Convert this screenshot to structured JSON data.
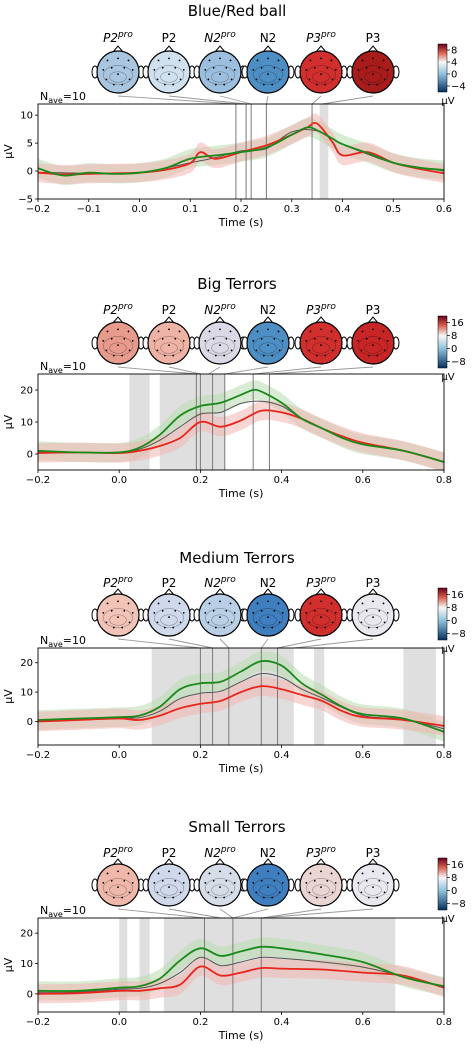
{
  "figure": {
    "colorbar_unit": "μV",
    "n_ave_label": "N",
    "n_ave_sub": "ave",
    "n_ave_value": "=10",
    "topo_labels": [
      {
        "base": "P2",
        "sup": "pro",
        "italic": true
      },
      {
        "base": "P2",
        "sup": "",
        "italic": false
      },
      {
        "base": "N2",
        "sup": "pro",
        "italic": true
      },
      {
        "base": "N2",
        "sup": "",
        "italic": false
      },
      {
        "base": "P3",
        "sup": "pro",
        "italic": true
      },
      {
        "base": "P3",
        "sup": "",
        "italic": false
      }
    ],
    "colors": {
      "green": "#1a8a1a",
      "red": "#e8251c",
      "dark": "#555555",
      "green_band": "#b8dcb0",
      "red_band": "#f2b5b0",
      "shade": "#d9d9d9"
    }
  },
  "chart_data": [
    {
      "type": "line",
      "title": "Blue/Red ball",
      "xlabel": "Time (s)",
      "ylabel": "μV",
      "xlim": [
        -0.2,
        0.6
      ],
      "ylim": [
        -5,
        12
      ],
      "xticks": [
        -0.2,
        -0.1,
        0.0,
        0.1,
        0.2,
        0.3,
        0.4,
        0.5,
        0.6
      ],
      "xtick_labels": [
        "−0.2",
        "−0.1",
        "0.0",
        "0.1",
        "0.2",
        "0.3",
        "0.4",
        "0.5",
        "0.6"
      ],
      "yticks": [
        -5,
        0,
        5,
        10
      ],
      "ytick_labels": [
        "−5",
        "0",
        "5",
        "10"
      ],
      "colorbar": {
        "ticks": [
          8,
          4,
          0,
          -4
        ],
        "tick_labels": [
          "8",
          "4",
          "0",
          "−4"
        ],
        "range": [
          -6,
          10
        ]
      },
      "topo_colors": [
        "#a8c6e0",
        "#cfe0ee",
        "#9dbfdf",
        "#4d8fc4",
        "#d12e2e",
        "#a81c1c"
      ],
      "topo_times": [
        0.19,
        0.21,
        0.22,
        0.25,
        0.34,
        0.36
      ],
      "vlines": [
        0.19,
        0.21,
        0.22,
        0.25,
        0.34
      ],
      "shaded": [
        [
          0.355,
          0.372
        ]
      ],
      "series": [
        {
          "color": "#1a8a1a",
          "x": [
            -0.2,
            -0.15,
            -0.1,
            -0.05,
            0.0,
            0.05,
            0.1,
            0.15,
            0.2,
            0.25,
            0.3,
            0.33,
            0.35,
            0.38,
            0.4,
            0.45,
            0.5,
            0.55,
            0.6
          ],
          "y": [
            0.5,
            -0.8,
            -0.3,
            -0.5,
            -0.3,
            0.5,
            2.2,
            2.8,
            3.4,
            4.2,
            6.5,
            7.8,
            7.3,
            5.8,
            4.8,
            3.2,
            1.5,
            0.6,
            0.2
          ]
        },
        {
          "color": "#e8251c",
          "x": [
            -0.2,
            -0.15,
            -0.1,
            -0.05,
            0.0,
            0.05,
            0.1,
            0.12,
            0.15,
            0.2,
            0.25,
            0.3,
            0.33,
            0.35,
            0.38,
            0.4,
            0.45,
            0.5,
            0.55,
            0.6
          ],
          "y": [
            -0.3,
            -0.6,
            -0.5,
            -0.4,
            -0.3,
            0.2,
            1.4,
            3.4,
            2.2,
            3.4,
            4.6,
            6.5,
            7.8,
            8.5,
            5.2,
            2.8,
            3.4,
            1.5,
            0.4,
            -0.4
          ]
        },
        {
          "color": "#555555",
          "x": [
            -0.2,
            -0.1,
            0.0,
            0.1,
            0.15,
            0.2,
            0.25,
            0.3,
            0.35,
            0.4,
            0.45,
            0.5,
            0.6
          ],
          "y": [
            -0.2,
            -0.4,
            -0.3,
            1.5,
            2.4,
            3.6,
            4.0,
            7.0,
            7.2,
            4.8,
            3.0,
            1.5,
            0.0
          ]
        }
      ]
    },
    {
      "type": "line",
      "title": "Big Terrors",
      "xlabel": "Time (s)",
      "ylabel": "μV",
      "xlim": [
        -0.2,
        0.8
      ],
      "ylim": [
        -5,
        25
      ],
      "xticks": [
        -0.2,
        0.0,
        0.2,
        0.4,
        0.6,
        0.8
      ],
      "xtick_labels": [
        "−0.2",
        "0.0",
        "0.2",
        "0.4",
        "0.6",
        "0.8"
      ],
      "yticks": [
        0,
        10,
        20
      ],
      "ytick_labels": [
        "0",
        "10",
        "20"
      ],
      "colorbar": {
        "ticks": [
          16,
          8,
          0,
          -8
        ],
        "tick_labels": [
          "16",
          "8",
          "0",
          "−8"
        ],
        "range": [
          -12,
          20
        ]
      },
      "topo_colors": [
        "#e89a8c",
        "#efb3a6",
        "#dcd9e6",
        "#4d8fc4",
        "#d12e2e",
        "#c82626"
      ],
      "topo_times": [
        0.19,
        0.2,
        0.22,
        0.26,
        0.33,
        0.37
      ],
      "vlines": [
        0.19,
        0.2,
        0.23,
        0.26,
        0.33,
        0.37
      ],
      "shaded": [
        [
          0.025,
          0.075
        ],
        [
          0.1,
          0.26
        ]
      ],
      "series": [
        {
          "color": "#1a8a1a",
          "x": [
            -0.2,
            -0.1,
            0.0,
            0.05,
            0.1,
            0.15,
            0.2,
            0.25,
            0.3,
            0.33,
            0.35,
            0.4,
            0.45,
            0.5,
            0.55,
            0.6,
            0.7,
            0.8
          ],
          "y": [
            1.0,
            0.5,
            0.5,
            2.0,
            6.0,
            12.0,
            15.0,
            16.0,
            18.5,
            20.0,
            19.5,
            16.0,
            11.0,
            8.0,
            5.0,
            3.0,
            1.0,
            -2.5
          ]
        },
        {
          "color": "#e8251c",
          "x": [
            -0.2,
            -0.1,
            0.0,
            0.05,
            0.1,
            0.15,
            0.2,
            0.25,
            0.3,
            0.35,
            0.4,
            0.45,
            0.5,
            0.55,
            0.6,
            0.7,
            0.8
          ],
          "y": [
            0.3,
            0.5,
            0.3,
            1.0,
            2.5,
            5.0,
            10.0,
            8.5,
            10.5,
            13.5,
            13.0,
            11.0,
            8.0,
            5.5,
            3.5,
            1.0,
            -2.5
          ]
        },
        {
          "color": "#555555",
          "x": [
            -0.2,
            -0.1,
            0.0,
            0.05,
            0.1,
            0.15,
            0.2,
            0.25,
            0.3,
            0.35,
            0.4,
            0.45,
            0.5,
            0.6,
            0.7,
            0.8
          ],
          "y": [
            0.6,
            0.5,
            0.4,
            1.5,
            4.3,
            8.5,
            12.5,
            13.0,
            15.8,
            16.5,
            15.0,
            11.0,
            8.0,
            3.3,
            1.0,
            -2.5
          ]
        }
      ]
    },
    {
      "type": "line",
      "title": "Medium Terrors",
      "xlabel": "Time (s)",
      "ylabel": "μV",
      "xlim": [
        -0.2,
        0.8
      ],
      "ylim": [
        -8,
        25
      ],
      "xticks": [
        -0.2,
        0.0,
        0.2,
        0.4,
        0.6,
        0.8
      ],
      "xtick_labels": [
        "−0.2",
        "0.0",
        "0.2",
        "0.4",
        "0.6",
        "0.8"
      ],
      "yticks": [
        0,
        10,
        20
      ],
      "ytick_labels": [
        "0",
        "10",
        "20"
      ],
      "colorbar": {
        "ticks": [
          16,
          8,
          0,
          -8
        ],
        "tick_labels": [
          "16",
          "8",
          "0",
          "−8"
        ],
        "range": [
          -12,
          20
        ]
      },
      "topo_colors": [
        "#f2c3b7",
        "#cfd9eb",
        "#b8cfe6",
        "#3f7fc0",
        "#d12e2e",
        "#e8e8ee"
      ],
      "topo_times": [
        0.2,
        0.23,
        0.27,
        0.35,
        0.39,
        0.43
      ],
      "vlines": [
        0.2,
        0.23,
        0.27,
        0.35,
        0.39
      ],
      "shaded": [
        [
          0.08,
          0.43
        ],
        [
          0.48,
          0.505
        ],
        [
          0.7,
          0.78
        ]
      ],
      "series": [
        {
          "color": "#1a8a1a",
          "x": [
            -0.2,
            -0.1,
            0.0,
            0.05,
            0.1,
            0.15,
            0.2,
            0.25,
            0.3,
            0.35,
            0.4,
            0.45,
            0.5,
            0.55,
            0.6,
            0.7,
            0.8
          ],
          "y": [
            0.5,
            1.0,
            1.5,
            2.0,
            5.0,
            11.0,
            13.0,
            13.5,
            17.0,
            20.5,
            19.0,
            13.0,
            9.0,
            5.0,
            2.5,
            1.0,
            -3.5
          ]
        },
        {
          "color": "#e8251c",
          "x": [
            -0.2,
            -0.1,
            0.0,
            0.05,
            0.1,
            0.15,
            0.2,
            0.25,
            0.3,
            0.35,
            0.4,
            0.45,
            0.5,
            0.55,
            0.6,
            0.7,
            0.8
          ],
          "y": [
            0.0,
            0.5,
            1.0,
            0.5,
            2.0,
            4.5,
            6.0,
            7.0,
            10.0,
            12.0,
            11.0,
            9.0,
            7.0,
            3.5,
            1.5,
            0.5,
            -1.5
          ]
        },
        {
          "color": "#555555",
          "x": [
            -0.2,
            -0.1,
            0.0,
            0.05,
            0.1,
            0.15,
            0.2,
            0.25,
            0.3,
            0.35,
            0.4,
            0.45,
            0.5,
            0.6,
            0.7,
            0.8
          ],
          "y": [
            0.3,
            0.8,
            1.3,
            1.3,
            3.5,
            7.8,
            9.6,
            10.3,
            13.5,
            16.3,
            15.0,
            11.0,
            8.0,
            2.0,
            0.8,
            -2.5
          ]
        }
      ]
    },
    {
      "type": "line",
      "title": "Small Terrors",
      "xlabel": "Time (s)",
      "ylabel": "μV",
      "xlim": [
        -0.2,
        0.8
      ],
      "ylim": [
        -6,
        25
      ],
      "xticks": [
        -0.2,
        0.0,
        0.2,
        0.4,
        0.6,
        0.8
      ],
      "xtick_labels": [
        "−0.2",
        "0.0",
        "0.2",
        "0.4",
        "0.6",
        "0.8"
      ],
      "yticks": [
        0,
        10,
        20
      ],
      "ytick_labels": [
        "0",
        "10",
        "20"
      ],
      "colorbar": {
        "ticks": [
          16,
          8,
          0,
          -8
        ],
        "tick_labels": [
          "16",
          "8",
          "0",
          "−8"
        ],
        "range": [
          -12,
          20
        ]
      },
      "topo_colors": [
        "#f0b8aa",
        "#cfd9eb",
        "#d6dde9",
        "#3f7fc0",
        "#ead5d5",
        "#e8e8ee"
      ],
      "topo_times": [
        0.21,
        0.25,
        0.28,
        0.28,
        0.35,
        0.35
      ],
      "vlines": [
        0.21,
        0.28,
        0.35
      ],
      "shaded": [
        [
          0.0,
          0.02
        ],
        [
          0.05,
          0.075
        ],
        [
          0.11,
          0.68
        ]
      ],
      "series": [
        {
          "color": "#1a8a1a",
          "x": [
            -0.2,
            -0.1,
            0.0,
            0.05,
            0.1,
            0.15,
            0.2,
            0.25,
            0.3,
            0.35,
            0.4,
            0.5,
            0.6,
            0.7,
            0.8
          ],
          "y": [
            1.0,
            1.0,
            2.0,
            2.5,
            5.0,
            11.0,
            15.0,
            12.5,
            14.0,
            15.5,
            15.0,
            13.0,
            10.5,
            5.5,
            2.5
          ]
        },
        {
          "color": "#e8251c",
          "x": [
            -0.2,
            -0.1,
            0.0,
            0.05,
            0.1,
            0.15,
            0.2,
            0.25,
            0.3,
            0.35,
            0.4,
            0.5,
            0.6,
            0.7,
            0.8
          ],
          "y": [
            0.0,
            0.2,
            1.0,
            1.0,
            1.8,
            3.0,
            9.0,
            6.0,
            7.0,
            8.5,
            8.3,
            8.0,
            7.0,
            6.0,
            2.0
          ]
        },
        {
          "color": "#555555",
          "x": [
            -0.2,
            -0.1,
            0.0,
            0.05,
            0.1,
            0.15,
            0.2,
            0.25,
            0.3,
            0.35,
            0.4,
            0.5,
            0.6,
            0.7,
            0.8
          ],
          "y": [
            0.5,
            0.6,
            1.5,
            1.8,
            3.4,
            7.0,
            12.0,
            9.3,
            10.5,
            12.0,
            11.7,
            10.5,
            8.8,
            5.8,
            2.3
          ]
        }
      ]
    }
  ]
}
